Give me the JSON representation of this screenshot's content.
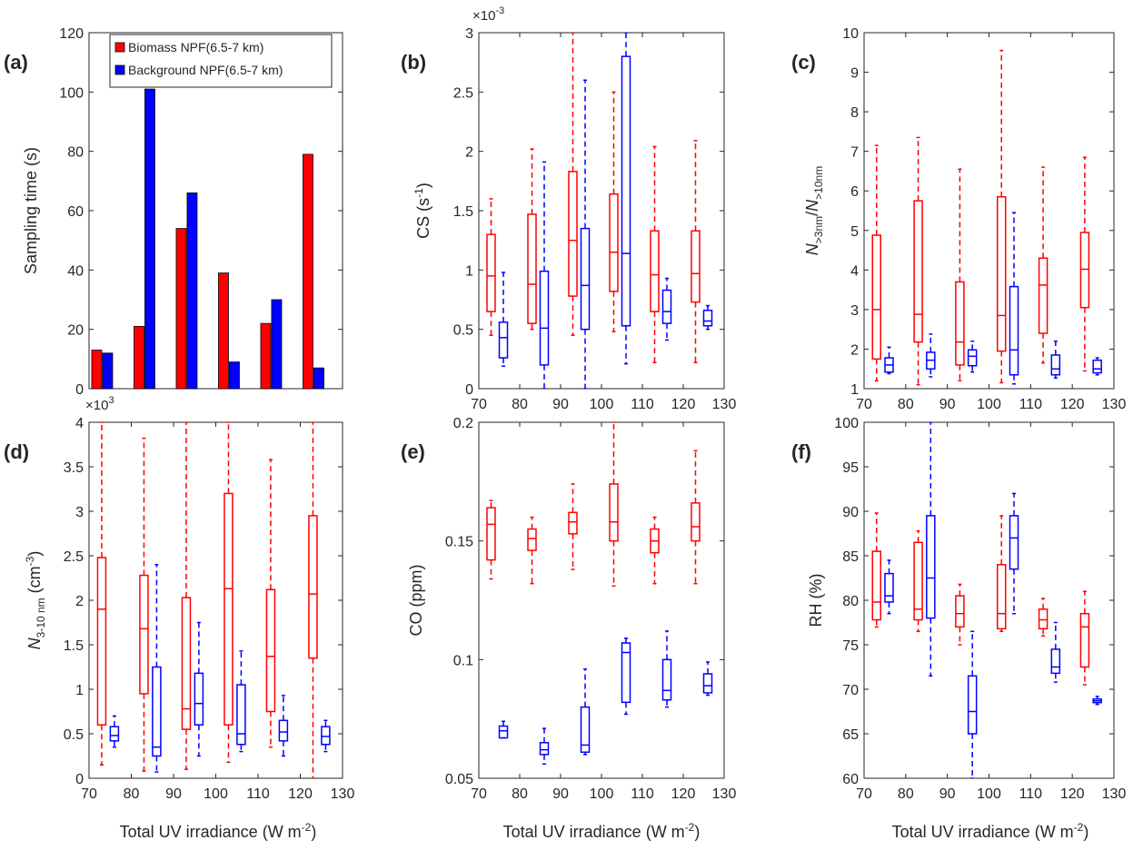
{
  "chart_data": [
    {
      "type": "bar",
      "panel_label": "(a)",
      "ylabel": "Sampling time (s)",
      "ylim": [
        0,
        120
      ],
      "yticks": [
        "0",
        "20",
        "40",
        "60",
        "80",
        "100",
        "120"
      ],
      "x": [
        73,
        83,
        93,
        103,
        113,
        123
      ],
      "series": [
        {
          "name": "Biomass NPF(6.5-7 km)",
          "color": "#ff0000",
          "values": [
            13,
            21,
            54,
            39,
            22,
            79
          ]
        },
        {
          "name": "Background NPF(6.5-7 km)",
          "color": "#0000ff",
          "values": [
            12,
            101,
            66,
            9,
            30,
            7
          ]
        }
      ],
      "legend_position": "top-right"
    },
    {
      "type": "box",
      "panel_label": "(b)",
      "ylabel": "CS (s",
      "ylabel_sup": "-1",
      "ylabel_end": ")",
      "ylim": [
        0,
        3
      ],
      "yticks": [
        "0",
        "0.5",
        "1",
        "1.5",
        "2",
        "2.5",
        "3"
      ],
      "exponent_base": "×10",
      "exponent_power": "-3",
      "xlim": [
        70,
        130
      ],
      "xticks": [
        "70",
        "80",
        "90",
        "100",
        "110",
        "120",
        "130"
      ],
      "series": [
        {
          "name": "Biomass NPF(6.5-7 km)",
          "color": "#ff0000",
          "x": [
            73,
            83,
            93,
            103,
            113,
            123
          ],
          "boxes": [
            [
              0.45,
              0.65,
              0.95,
              1.3,
              1.6
            ],
            [
              0.5,
              0.55,
              0.88,
              1.47,
              2.02
            ],
            [
              0.45,
              0.78,
              1.25,
              1.83,
              3.0
            ],
            [
              0.48,
              0.82,
              1.15,
              1.64,
              2.5
            ],
            [
              0.22,
              0.65,
              0.96,
              1.33,
              2.04
            ],
            [
              0.22,
              0.73,
              0.97,
              1.33,
              2.09
            ]
          ]
        },
        {
          "name": "Background NPF(6.5-7 km)",
          "color": "#0000ff",
          "x": [
            76,
            86,
            96,
            106,
            116,
            126
          ],
          "boxes": [
            [
              0.19,
              0.26,
              0.43,
              0.56,
              0.98
            ],
            [
              0.0,
              0.2,
              0.51,
              0.99,
              1.91
            ],
            [
              0.0,
              0.5,
              0.87,
              1.35,
              2.6
            ],
            [
              0.21,
              0.53,
              1.14,
              2.8,
              3.0
            ],
            [
              0.41,
              0.55,
              0.65,
              0.83,
              0.93
            ],
            [
              0.5,
              0.53,
              0.57,
              0.66,
              0.7
            ]
          ]
        }
      ]
    },
    {
      "type": "box",
      "panel_label": "(c)",
      "ylabel_n1": "N",
      "ylabel_s1": ">3nm",
      "ylabel_slash": "/",
      "ylabel_n2": "N",
      "ylabel_s2": ">10nm",
      "ylim": [
        1,
        10
      ],
      "yticks": [
        "1",
        "2",
        "3",
        "4",
        "5",
        "6",
        "7",
        "8",
        "9",
        "10"
      ],
      "xlim": [
        70,
        130
      ],
      "xticks": [
        "70",
        "80",
        "90",
        "100",
        "110",
        "120",
        "130"
      ],
      "series": [
        {
          "name": "Biomass NPF(6.5-7 km)",
          "color": "#ff0000",
          "x": [
            73,
            83,
            93,
            103,
            113,
            123
          ],
          "boxes": [
            [
              1.2,
              1.75,
              3.0,
              4.88,
              7.15
            ],
            [
              1.1,
              2.18,
              2.88,
              5.75,
              7.35
            ],
            [
              1.2,
              1.6,
              2.18,
              3.7,
              6.55
            ],
            [
              1.15,
              1.95,
              2.85,
              5.85,
              9.55
            ],
            [
              1.65,
              2.4,
              3.62,
              4.3,
              6.6
            ],
            [
              1.45,
              3.05,
              4.02,
              4.95,
              6.85
            ]
          ]
        },
        {
          "name": "Background NPF(6.5-7 km)",
          "color": "#0000ff",
          "x": [
            76,
            86,
            96,
            106,
            116,
            126
          ],
          "boxes": [
            [
              1.38,
              1.42,
              1.6,
              1.78,
              2.05
            ],
            [
              1.3,
              1.5,
              1.72,
              1.92,
              2.38
            ],
            [
              1.42,
              1.58,
              1.82,
              1.98,
              2.2
            ],
            [
              1.12,
              1.35,
              1.98,
              3.58,
              5.45
            ],
            [
              1.27,
              1.35,
              1.5,
              1.85,
              2.2
            ],
            [
              1.35,
              1.4,
              1.5,
              1.72,
              1.78
            ]
          ]
        }
      ]
    },
    {
      "type": "box",
      "panel_label": "(d)",
      "ylabel_n": "N",
      "ylabel_sub": "3-10 nm",
      "ylabel_unit": " (cm",
      "ylabel_sup": "-3",
      "ylabel_end": ")",
      "ylim": [
        0,
        4
      ],
      "yticks": [
        "0",
        "0.5",
        "1",
        "1.5",
        "2",
        "2.5",
        "3",
        "3.5",
        "4"
      ],
      "exponent_base": "×10",
      "exponent_power": "3",
      "xlabel": "Total UV irradiance (W m",
      "xlabel_sup": "-2",
      "xlabel_end": ")",
      "xlim": [
        70,
        130
      ],
      "xticks": [
        "70",
        "80",
        "90",
        "100",
        "110",
        "120",
        "130"
      ],
      "series": [
        {
          "name": "Biomass NPF(6.5-7 km)",
          "color": "#ff0000",
          "x": [
            73,
            83,
            93,
            103,
            113,
            123
          ],
          "boxes": [
            [
              0.15,
              0.6,
              1.9,
              2.48,
              4.0
            ],
            [
              0.08,
              0.95,
              1.68,
              2.28,
              3.82
            ],
            [
              0.1,
              0.55,
              0.78,
              2.03,
              4.0
            ],
            [
              0.18,
              0.6,
              2.13,
              3.2,
              4.0
            ],
            [
              0.35,
              0.75,
              1.37,
              2.12,
              3.58
            ],
            [
              0.0,
              1.35,
              2.07,
              2.95,
              4.0
            ]
          ]
        },
        {
          "name": "Background NPF(6.5-7 km)",
          "color": "#0000ff",
          "x": [
            76,
            86,
            96,
            106,
            116,
            126
          ],
          "boxes": [
            [
              0.35,
              0.42,
              0.48,
              0.58,
              0.7
            ],
            [
              0.07,
              0.25,
              0.35,
              1.25,
              2.4
            ],
            [
              0.25,
              0.6,
              0.84,
              1.18,
              1.75
            ],
            [
              0.3,
              0.38,
              0.5,
              1.05,
              1.43
            ],
            [
              0.25,
              0.42,
              0.52,
              0.65,
              0.93
            ],
            [
              0.3,
              0.38,
              0.47,
              0.58,
              0.65
            ]
          ]
        }
      ]
    },
    {
      "type": "box",
      "panel_label": "(e)",
      "ylabel": "CO (ppm)",
      "ylim": [
        0.05,
        0.2
      ],
      "yticks": [
        "0.05",
        "0.1",
        "0.15",
        "0.2"
      ],
      "xlabel": "Total UV irradiance (W m",
      "xlabel_sup": "-2",
      "xlabel_end": ")",
      "xlim": [
        70,
        130
      ],
      "xticks": [
        "70",
        "80",
        "90",
        "100",
        "110",
        "120",
        "130"
      ],
      "series": [
        {
          "name": "Biomass NPF(6.5-7 km)",
          "color": "#ff0000",
          "x": [
            73,
            83,
            93,
            103,
            113,
            123
          ],
          "boxes": [
            [
              0.134,
              0.142,
              0.157,
              0.164,
              0.167
            ],
            [
              0.132,
              0.146,
              0.151,
              0.155,
              0.16
            ],
            [
              0.138,
              0.153,
              0.158,
              0.162,
              0.174
            ],
            [
              0.131,
              0.15,
              0.158,
              0.174,
              0.2
            ],
            [
              0.132,
              0.145,
              0.15,
              0.155,
              0.16
            ],
            [
              0.132,
              0.15,
              0.156,
              0.166,
              0.188
            ]
          ]
        },
        {
          "name": "Background NPF(6.5-7 km)",
          "color": "#0000ff",
          "x": [
            76,
            86,
            96,
            106,
            116,
            126
          ],
          "boxes": [
            [
              0.067,
              0.067,
              0.07,
              0.072,
              0.074
            ],
            [
              0.056,
              0.06,
              0.062,
              0.065,
              0.071
            ],
            [
              0.06,
              0.061,
              0.064,
              0.08,
              0.096
            ],
            [
              0.077,
              0.082,
              0.103,
              0.107,
              0.109
            ],
            [
              0.08,
              0.083,
              0.087,
              0.1,
              0.112
            ],
            [
              0.085,
              0.086,
              0.089,
              0.094,
              0.099
            ]
          ]
        }
      ]
    },
    {
      "type": "box",
      "panel_label": "(f)",
      "ylabel": "RH (%)",
      "ylim": [
        60,
        100
      ],
      "yticks": [
        "60",
        "65",
        "70",
        "75",
        "80",
        "85",
        "90",
        "95",
        "100"
      ],
      "xlabel": "Total UV irradiance (W m",
      "xlabel_sup": "-2",
      "xlabel_end": ")",
      "xlim": [
        70,
        130
      ],
      "xticks": [
        "70",
        "80",
        "90",
        "100",
        "110",
        "120",
        "130"
      ],
      "series": [
        {
          "name": "Biomass NPF(6.5-7 km)",
          "color": "#ff0000",
          "x": [
            73,
            83,
            93,
            103,
            113,
            123
          ],
          "boxes": [
            [
              77.0,
              77.8,
              79.8,
              85.5,
              89.8
            ],
            [
              76.5,
              77.8,
              79.0,
              86.5,
              87.8
            ],
            [
              75.0,
              77.0,
              78.5,
              80.5,
              81.8
            ],
            [
              76.5,
              76.8,
              78.5,
              84.0,
              89.5
            ],
            [
              76.0,
              76.8,
              77.8,
              79.0,
              80.2
            ],
            [
              70.5,
              72.5,
              77.0,
              78.5,
              81.0
            ]
          ]
        },
        {
          "name": "Background NPF(6.5-7 km)",
          "color": "#0000ff",
          "x": [
            76,
            86,
            96,
            106,
            116,
            126
          ],
          "boxes": [
            [
              78.5,
              79.8,
              80.5,
              83.0,
              84.5
            ],
            [
              71.5,
              78.0,
              82.5,
              89.5,
              100.0
            ],
            [
              60.0,
              65.0,
              67.5,
              71.5,
              76.5
            ],
            [
              78.5,
              83.5,
              87.0,
              89.5,
              92.0
            ],
            [
              70.8,
              71.8,
              72.5,
              74.5,
              77.5
            ],
            [
              68.3,
              68.5,
              68.7,
              68.9,
              69.2
            ]
          ]
        }
      ]
    }
  ]
}
